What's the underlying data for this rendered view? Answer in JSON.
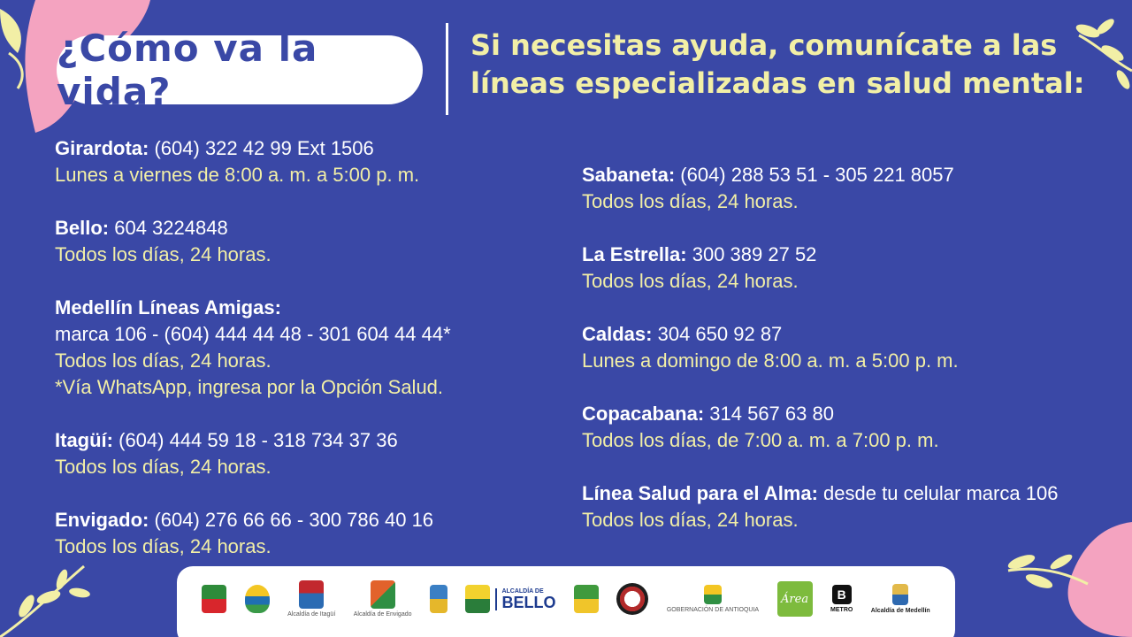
{
  "title": "¿Cómo va la vida?",
  "headline": {
    "line1": "Si necesitas ayuda, comunícate a las",
    "line2": "líneas especializadas en salud mental:"
  },
  "left": [
    {
      "name": "Girardota:",
      "phone": " (604) 322 42 99 Ext 1506",
      "hours": "Lunes a viernes de 8:00 a. m. a 5:00 p. m."
    },
    {
      "name": "Bello:",
      "phone": " 604 3224848",
      "hours": "Todos los días, 24 horas."
    },
    {
      "name": "Medellín Líneas Amigas:",
      "phone": "marca 106 - (604) 444 44 48 - 301 604 44 44*",
      "hours": "Todos los días, 24 horas.",
      "note": "*Vía WhatsApp, ingresa por la Opción Salud."
    },
    {
      "name": "Itagüí:",
      "phone": " (604) 444 59 18 - 318 734 37 36",
      "hours": "Todos los días, 24 horas."
    },
    {
      "name": "Envigado:",
      "phone": " (604) 276 66 66 - 300 786 40 16",
      "hours": "Todos los días, 24 horas."
    }
  ],
  "right": [
    {
      "name": "Sabaneta:",
      "phone": " (604) 288 53 51 - 305 221 8057",
      "hours": "Todos los días, 24 horas."
    },
    {
      "name": "La Estrella:",
      "phone": " 300 389 27 52",
      "hours": "Todos los días, 24 horas."
    },
    {
      "name": "Caldas:",
      "phone": " 304 650 92 87",
      "hours": "Lunes a domingo de 8:00 a. m. a 5:00 p. m."
    },
    {
      "name": "Copacabana:",
      "phone": " 314 567 63 80",
      "hours": "Todos los días, de 7:00 a. m. a 7:00 p. m."
    },
    {
      "name": "Línea Salud para el Alma:",
      "phone": " desde tu celular marca 106",
      "hours": "Todos los días, 24 horas."
    }
  ],
  "logos": {
    "itagui": "Alcaldía de Itagüí",
    "envigado": "Alcaldía de Envigado",
    "bello_top": "ALCALDÍA DE",
    "bello": "BELLO",
    "antioquia": "GOBERNACIÓN DE ANTIOQUIA",
    "area": "Área",
    "metro": "METRO",
    "medellin": "Alcaldía de Medellín"
  },
  "colors": {
    "background": "#3a48a6",
    "accent_yellow": "#f2efa6",
    "decor_pink": "#f4a3c0"
  }
}
